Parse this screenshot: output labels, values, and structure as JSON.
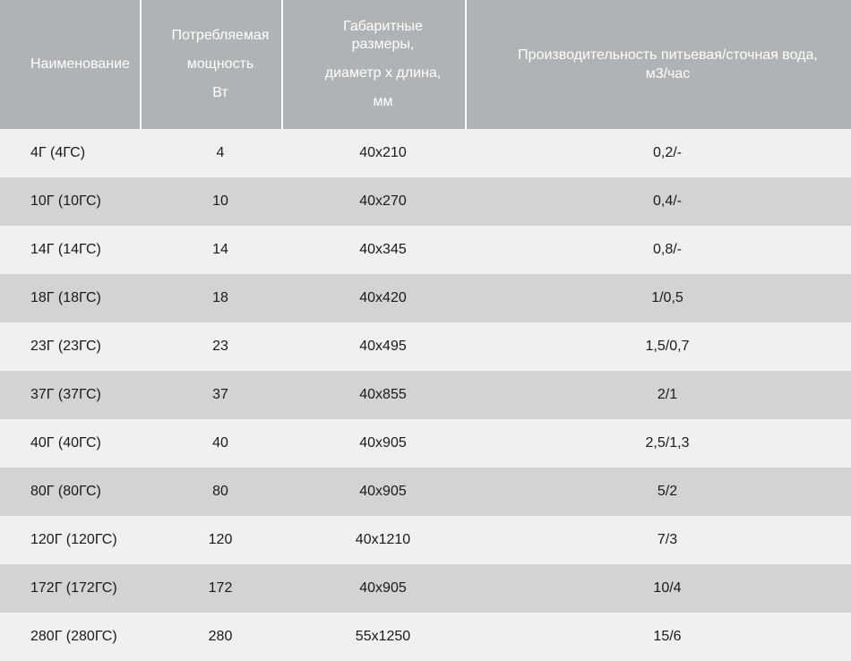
{
  "chart_data": {
    "type": "table",
    "title": "",
    "columns": [
      "Наименование",
      "Потребляемая мощность Вт",
      "Габаритные размеры, диаметр х длина, мм",
      "Производительность питьевая/сточная вода, м3/час"
    ],
    "rows": [
      [
        "4Г (4ГС)",
        "4",
        "40x210",
        "0,2/-"
      ],
      [
        "10Г (10ГС)",
        "10",
        "40x270",
        "0,4/-"
      ],
      [
        "14Г (14ГС)",
        "14",
        "40x345",
        "0,8/-"
      ],
      [
        "18Г (18ГС)",
        "18",
        "40x420",
        "1/0,5"
      ],
      [
        "23Г (23ГС)",
        "23",
        "40x495",
        "1,5/0,7"
      ],
      [
        "37Г (37ГС)",
        "37",
        "40x855",
        "2/1"
      ],
      [
        "40Г (40ГС)",
        "40",
        "40x905",
        "2,5/1,3"
      ],
      [
        "80Г (80ГС)",
        "80",
        "40x905",
        "5/2"
      ],
      [
        "120Г (120ГС)",
        "120",
        "40x1210",
        "7/3"
      ],
      [
        "172Г (172ГС)",
        "172",
        "40x905",
        "10/4"
      ],
      [
        "280Г (280ГС)",
        "280",
        "55x1250",
        "15/6"
      ]
    ],
    "layout": {
      "legend": "none",
      "grid": "off",
      "zebra_striping": true
    }
  },
  "header": {
    "cells": [
      {
        "id": "name",
        "lines": [
          "Наименование"
        ]
      },
      {
        "id": "power",
        "lines": [
          "Потребляемая",
          "мощность",
          "Вт"
        ]
      },
      {
        "id": "dimensions",
        "lines": [
          "Габаритные",
          "размеры,",
          "диаметр х длина,",
          "мм"
        ]
      },
      {
        "id": "capacity",
        "lines": [
          "Производительность питьевая/сточная вода,",
          "м3/час"
        ]
      }
    ]
  },
  "colors": {
    "header_bg": "#b0b3b5",
    "header_text": "#ffffff",
    "row_light": "#f0f0f1",
    "row_dark": "#d1d3d4",
    "body_text": "#1a1a1a",
    "header_separator": "#ffffff"
  }
}
